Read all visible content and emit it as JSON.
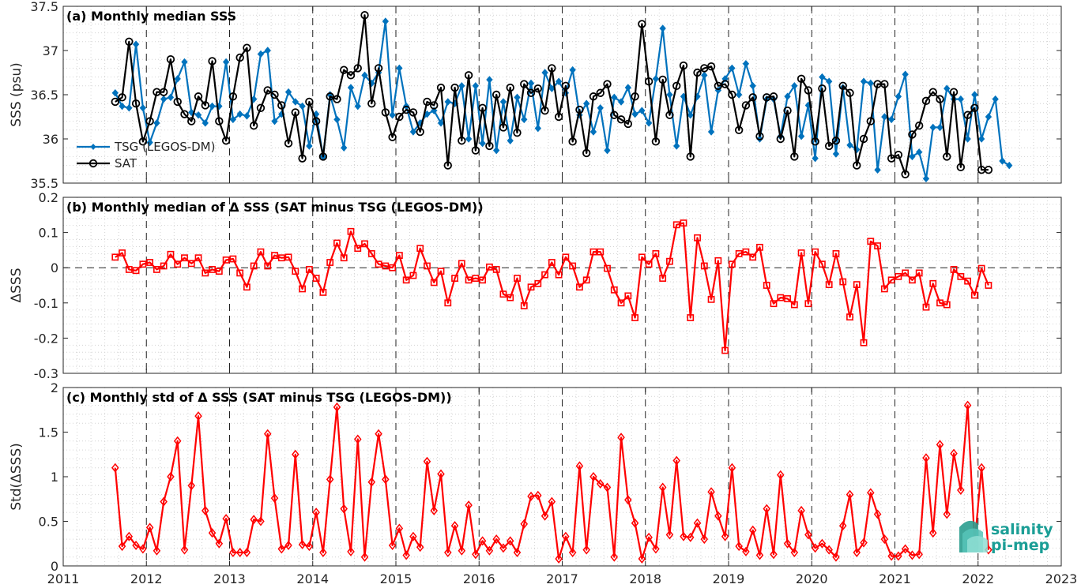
{
  "logo": {
    "line1": "salinity",
    "line2": "pi-mep"
  },
  "chart_data": [
    {
      "type": "line",
      "title": "(a) Monthly median SSS",
      "ylabel": "SSS (psu)",
      "xlim": [
        2011,
        2023
      ],
      "ylim": [
        35.5,
        37.5
      ],
      "yticks": [
        "35.5",
        "36",
        "36.5",
        "37",
        "37.5"
      ],
      "xticks": [
        "2011",
        "2012",
        "2013",
        "2014",
        "2015",
        "2016",
        "2017",
        "2018",
        "2019",
        "2020",
        "2021",
        "2022",
        "2023"
      ],
      "legend": {
        "placement": "bottom-left",
        "entries": [
          "TSG (LEGOS-DM)",
          "SAT"
        ]
      },
      "grid": true,
      "x_start_decimal_year": 2011.625,
      "x_step_months": 1,
      "series": [
        {
          "name": "TSG (LEGOS-DM)",
          "color": "#0072BD",
          "marker": "diamond",
          "values": [
            36.52,
            36.37,
            36.35,
            37.07,
            36.35,
            35.96,
            36.18,
            36.45,
            36.47,
            36.68,
            36.87,
            36.3,
            36.27,
            36.18,
            36.37,
            36.37,
            36.87,
            36.22,
            36.28,
            36.26,
            36.45,
            36.96,
            37.0,
            36.2,
            36.28,
            36.53,
            36.42,
            36.37,
            35.92,
            36.28,
            35.8,
            36.5,
            36.22,
            35.9,
            36.58,
            36.37,
            36.72,
            36.63,
            36.75,
            37.33,
            36.27,
            36.8,
            36.37,
            36.08,
            36.18,
            36.28,
            36.32,
            36.18,
            36.42,
            36.4,
            36.6,
            36.0,
            36.6,
            35.95,
            36.67,
            35.87,
            36.42,
            35.98,
            36.47,
            36.22,
            36.63,
            36.12,
            36.75,
            36.57,
            36.65,
            36.52,
            36.78,
            36.27,
            36.4,
            36.08,
            36.35,
            35.87,
            36.47,
            36.42,
            36.58,
            36.28,
            36.32,
            36.18,
            36.68,
            37.25,
            36.5,
            35.92,
            36.48,
            36.27,
            36.48,
            36.72,
            36.08,
            36.55,
            36.68,
            36.8,
            36.5,
            36.85,
            36.6,
            36.0,
            36.45,
            36.45,
            36.03,
            36.48,
            36.6,
            36.03,
            36.38,
            35.78,
            36.7,
            36.65,
            35.83,
            36.58,
            35.93,
            35.88,
            36.65,
            36.63,
            35.65,
            36.25,
            36.22,
            36.48,
            36.73,
            35.8,
            35.85,
            35.55,
            36.13,
            36.13,
            36.57,
            36.45,
            36.45,
            36.0,
            36.5,
            36.0,
            36.25,
            36.45,
            35.75,
            35.7
          ]
        },
        {
          "name": "SAT",
          "color": "#000000",
          "marker": "circle",
          "values": [
            36.42,
            36.47,
            37.1,
            36.4,
            35.97,
            36.2,
            36.53,
            36.53,
            36.9,
            36.42,
            36.28,
            36.2,
            36.48,
            36.38,
            36.88,
            36.2,
            35.98,
            36.48,
            36.92,
            37.03,
            36.15,
            36.35,
            36.55,
            36.5,
            36.38,
            35.95,
            36.3,
            35.78,
            36.42,
            36.2,
            35.8,
            36.48,
            36.45,
            36.78,
            36.72,
            36.8,
            37.4,
            36.4,
            36.8,
            36.3,
            36.02,
            36.25,
            36.33,
            36.3,
            36.08,
            36.42,
            36.38,
            36.58,
            35.7,
            36.58,
            35.98,
            36.72,
            35.87,
            36.35,
            35.92,
            36.5,
            36.13,
            36.58,
            36.07,
            36.62,
            36.52,
            36.57,
            36.32,
            36.8,
            36.25,
            36.6,
            35.97,
            36.33,
            35.84,
            36.48,
            36.52,
            36.62,
            36.27,
            36.22,
            36.17,
            36.48,
            37.3,
            36.65,
            35.97,
            36.67,
            36.27,
            36.6,
            36.83,
            35.8,
            36.75,
            36.8,
            36.82,
            36.6,
            36.62,
            36.5,
            36.1,
            36.38,
            36.47,
            36.03,
            36.47,
            36.48,
            36.0,
            36.32,
            35.8,
            36.68,
            36.55,
            35.97,
            36.57,
            35.92,
            35.98,
            36.6,
            36.52,
            35.7,
            36.0,
            36.2,
            36.62,
            36.62,
            35.78,
            35.82,
            35.6,
            36.05,
            36.15,
            36.43,
            36.53,
            36.45,
            35.8,
            36.53,
            35.68,
            36.27,
            36.35,
            35.65,
            35.65
          ]
        }
      ]
    },
    {
      "type": "line",
      "title": "(b) Monthly median of Δ SSS (SAT minus TSG (LEGOS-DM))",
      "ylabel": "ΔSSS",
      "xlim": [
        2011,
        2023
      ],
      "ylim": [
        -0.3,
        0.2
      ],
      "yticks": [
        "-0.3",
        "-0.2",
        "-0.1",
        "0",
        "0.1",
        "0.2"
      ],
      "xticks": [
        "2011",
        "2012",
        "2013",
        "2014",
        "2015",
        "2016",
        "2017",
        "2018",
        "2019",
        "2020",
        "2021",
        "2022",
        "2023"
      ],
      "grid": true,
      "x_start_decimal_year": 2011.625,
      "x_step_months": 1,
      "series": [
        {
          "name": "",
          "color": "#FF0000",
          "marker": "square",
          "values": [
            0.03,
            0.042,
            -0.005,
            -0.008,
            0.01,
            0.015,
            -0.005,
            0.005,
            0.038,
            0.01,
            0.028,
            0.012,
            0.028,
            -0.015,
            -0.005,
            -0.01,
            0.022,
            0.025,
            -0.015,
            -0.055,
            0.005,
            0.045,
            0.005,
            0.035,
            0.028,
            0.03,
            -0.01,
            -0.06,
            -0.005,
            -0.03,
            -0.07,
            0.015,
            0.07,
            0.028,
            0.103,
            0.055,
            0.068,
            0.04,
            0.01,
            0.005,
            0.0,
            0.035,
            -0.035,
            -0.022,
            0.055,
            0.005,
            -0.042,
            -0.01,
            -0.1,
            -0.03,
            0.012,
            -0.035,
            -0.03,
            -0.035,
            0.002,
            -0.005,
            -0.075,
            -0.085,
            -0.03,
            -0.108,
            -0.055,
            -0.045,
            -0.02,
            0.015,
            -0.02,
            0.03,
            0.005,
            -0.055,
            -0.035,
            0.045,
            0.045,
            -0.002,
            -0.063,
            -0.1,
            -0.08,
            -0.142,
            0.03,
            0.01,
            0.04,
            -0.03,
            0.018,
            0.122,
            0.127,
            -0.142,
            0.085,
            0.005,
            -0.09,
            0.02,
            -0.235,
            0.01,
            0.04,
            0.045,
            0.03,
            0.058,
            -0.05,
            -0.102,
            -0.085,
            -0.088,
            -0.105,
            0.042,
            -0.102,
            0.045,
            0.01,
            -0.048,
            0.04,
            -0.04,
            -0.14,
            -0.048,
            -0.213,
            0.075,
            0.062,
            -0.06,
            -0.035,
            -0.025,
            -0.015,
            -0.035,
            -0.015,
            -0.112,
            -0.045,
            -0.1,
            -0.105,
            -0.005,
            -0.025,
            -0.038,
            -0.078,
            -0.002,
            -0.05
          ]
        }
      ]
    },
    {
      "type": "line",
      "title": "(c) Monthly std of Δ SSS (SAT minus TSG (LEGOS-DM))",
      "ylabel": "Std(ΔSSS)",
      "xlim": [
        2011,
        2023
      ],
      "ylim": [
        0,
        2
      ],
      "yticks": [
        "0",
        "0.5",
        "1",
        "1.5",
        "2"
      ],
      "xticks": [
        "2011",
        "2012",
        "2013",
        "2014",
        "2015",
        "2016",
        "2017",
        "2018",
        "2019",
        "2020",
        "2021",
        "2022",
        "2023"
      ],
      "grid": true,
      "x_start_decimal_year": 2011.625,
      "x_step_months": 1,
      "series": [
        {
          "name": "",
          "color": "#FF0000",
          "marker": "diamond",
          "values": [
            1.1,
            0.22,
            0.33,
            0.23,
            0.19,
            0.43,
            0.17,
            0.72,
            1.0,
            1.4,
            0.18,
            0.9,
            1.68,
            0.62,
            0.37,
            0.25,
            0.53,
            0.15,
            0.15,
            0.15,
            0.52,
            0.5,
            1.48,
            0.76,
            0.19,
            0.23,
            1.25,
            0.24,
            0.22,
            0.6,
            0.15,
            0.97,
            1.78,
            0.64,
            0.16,
            1.42,
            0.1,
            0.94,
            1.48,
            0.97,
            0.23,
            0.42,
            0.12,
            0.33,
            0.21,
            1.17,
            0.62,
            1.03,
            0.15,
            0.45,
            0.17,
            0.68,
            0.13,
            0.28,
            0.17,
            0.3,
            0.2,
            0.28,
            0.15,
            0.47,
            0.78,
            0.79,
            0.56,
            0.72,
            0.08,
            0.33,
            0.15,
            1.12,
            0.18,
            1.0,
            0.92,
            0.88,
            0.1,
            1.44,
            0.74,
            0.48,
            0.08,
            0.32,
            0.19,
            0.88,
            0.35,
            1.18,
            0.33,
            0.32,
            0.48,
            0.3,
            0.83,
            0.56,
            0.33,
            1.1,
            0.22,
            0.16,
            0.4,
            0.12,
            0.64,
            0.13,
            1.02,
            0.25,
            0.15,
            0.62,
            0.35,
            0.2,
            0.25,
            0.18,
            0.1,
            0.45,
            0.8,
            0.15,
            0.26,
            0.82,
            0.58,
            0.3,
            0.11,
            0.11,
            0.19,
            0.12,
            0.13,
            1.21,
            0.37,
            1.36,
            0.58,
            1.26,
            0.85,
            1.8,
            0.25,
            1.1,
            0.18
          ]
        }
      ]
    }
  ]
}
